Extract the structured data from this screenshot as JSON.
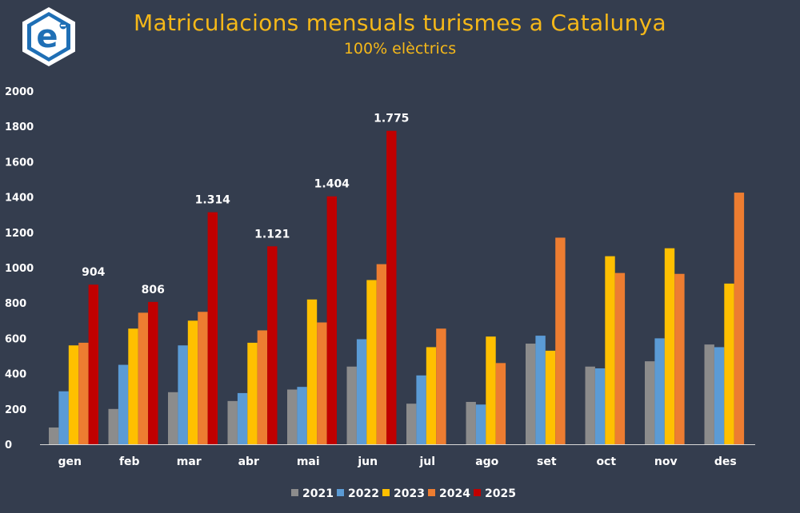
{
  "chart_data": {
    "type": "bar",
    "title": "Matriculacions mensuals turismes a Catalunya",
    "subtitle": "100% elèctrics",
    "categories": [
      "gen",
      "feb",
      "mar",
      "abr",
      "mai",
      "jun",
      "jul",
      "ago",
      "set",
      "oct",
      "nov",
      "des"
    ],
    "series": [
      {
        "name": "2021",
        "color": "#8c8c8c",
        "values": [
          95,
          200,
          295,
          245,
          310,
          440,
          230,
          240,
          570,
          440,
          470,
          565
        ]
      },
      {
        "name": "2022",
        "color": "#5b9bd5",
        "values": [
          300,
          450,
          560,
          290,
          325,
          595,
          390,
          225,
          615,
          430,
          600,
          550
        ]
      },
      {
        "name": "2023",
        "color": "#ffc000",
        "values": [
          560,
          655,
          700,
          575,
          820,
          930,
          550,
          610,
          530,
          1065,
          1110,
          910
        ]
      },
      {
        "name": "2024",
        "color": "#ed7d31",
        "values": [
          575,
          745,
          750,
          645,
          690,
          1020,
          655,
          460,
          1170,
          970,
          965,
          1425
        ]
      },
      {
        "name": "2025",
        "color": "#c00000",
        "values": [
          904,
          806,
          1314,
          1121,
          1404,
          1775,
          null,
          null,
          null,
          null,
          null,
          null
        ]
      }
    ],
    "data_labels": {
      "series": "2025",
      "labels": [
        "904",
        "806",
        "1.314",
        "1.121",
        "1.404",
        "1.775"
      ]
    },
    "ylim": [
      0,
      2000
    ],
    "yticks": [
      0,
      200,
      400,
      600,
      800,
      1000,
      1200,
      1400,
      1600,
      1800,
      2000
    ],
    "xlabel": "",
    "ylabel": "",
    "grid": false,
    "legend_position": "bottom"
  },
  "logo": {
    "glyph": "e",
    "icon": "logo-hexagon-icon",
    "colors": {
      "border": "#ffffff",
      "fill": "#1f6fb5",
      "inner": "#ffffff"
    }
  },
  "colors": {
    "background": "#343d4e",
    "title": "#f5b819",
    "text": "#ffffff",
    "axis": "#d9d9d9"
  }
}
